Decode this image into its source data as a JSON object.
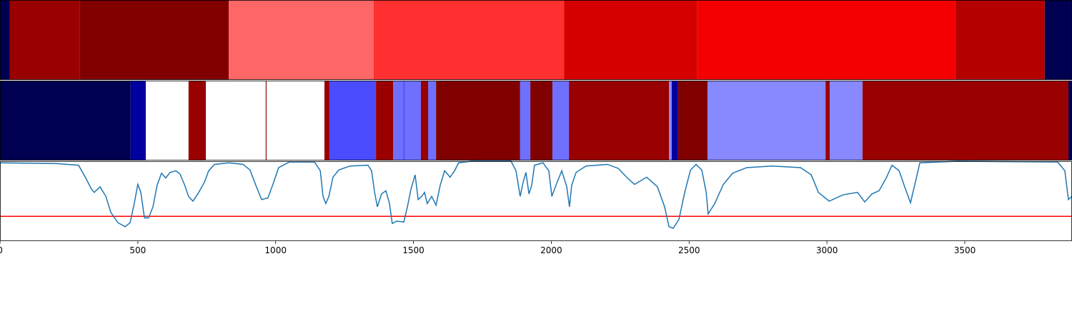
{
  "chart_data": [
    {
      "type": "segments",
      "xlim": [
        0,
        3889
      ],
      "bins": [
        0,
        36,
        290,
        830,
        1356,
        2046,
        2530,
        3466,
        3790,
        3889
      ],
      "colors": [
        "#000050",
        "#990000",
        "#800000",
        "#ff6666",
        "#ff3030",
        "#d50000",
        "#f50000",
        "#b50000",
        "#000050"
      ]
    },
    {
      "type": "segments",
      "xlim": [
        0,
        3889
      ],
      "bins": [
        0,
        474,
        529,
        684,
        747,
        964,
        967,
        1177,
        1195,
        1364,
        1426,
        1460,
        1470,
        1527,
        1553,
        1582,
        1887,
        1924,
        2004,
        2064,
        2427,
        2437,
        2460,
        2567,
        2995,
        3010,
        3129,
        3876,
        3889
      ],
      "colors": [
        "#000050",
        "#0000a0",
        "#ffffff",
        "#990000",
        "#ffffff",
        "#800000",
        "#ffffff",
        "#990000",
        "#4c4cff",
        "#990000",
        "#7070ff",
        "#5c5cff",
        "#7070ff",
        "#990000",
        "#7070ff",
        "#800000",
        "#7070ff",
        "#800000",
        "#7070ff",
        "#990000",
        "#8888ff",
        "#0000a0",
        "#800000",
        "#8888ff",
        "#990000",
        "#8888ff",
        "#990000",
        "#000050"
      ]
    },
    {
      "type": "line",
      "xlim": [
        0,
        3889
      ],
      "ylim": [
        0,
        1
      ],
      "xticks": [
        0,
        500,
        1000,
        1500,
        2000,
        2500,
        3000,
        3500
      ],
      "color": "#1f77b4",
      "hline": {
        "value": 0.31,
        "color": "#ff0000"
      },
      "x": [
        0,
        207,
        285,
        311,
        332,
        342,
        363,
        384,
        402,
        428,
        454,
        472,
        487,
        500,
        511,
        524,
        539,
        555,
        570,
        586,
        601,
        617,
        638,
        653,
        669,
        684,
        700,
        721,
        742,
        757,
        778,
        830,
        882,
        907,
        928,
        949,
        972,
        990,
        1011,
        1050,
        1141,
        1162,
        1172,
        1182,
        1193,
        1208,
        1229,
        1270,
        1335,
        1348,
        1359,
        1369,
        1384,
        1400,
        1413,
        1423,
        1439,
        1465,
        1478,
        1491,
        1506,
        1517,
        1530,
        1540,
        1550,
        1566,
        1582,
        1597,
        1613,
        1633,
        1649,
        1664,
        1711,
        1854,
        1872,
        1887,
        1898,
        1908,
        1919,
        1929,
        1939,
        1970,
        1991,
        2002,
        2017,
        2038,
        2056,
        2066,
        2074,
        2090,
        2126,
        2204,
        2243,
        2276,
        2302,
        2346,
        2385,
        2411,
        2427,
        2442,
        2463,
        2484,
        2505,
        2525,
        2546,
        2562,
        2569,
        2593,
        2624,
        2658,
        2709,
        2800,
        2904,
        2943,
        2969,
        3008,
        3059,
        3111,
        3137,
        3163,
        3189,
        3215,
        3236,
        3262,
        3282,
        3303,
        3319,
        3337,
        3474,
        3837,
        3863,
        3876,
        3889
      ],
      "values": [
        0.98,
        0.97,
        0.95,
        0.79,
        0.65,
        0.61,
        0.68,
        0.56,
        0.36,
        0.23,
        0.18,
        0.23,
        0.47,
        0.71,
        0.61,
        0.29,
        0.29,
        0.43,
        0.7,
        0.85,
        0.79,
        0.86,
        0.88,
        0.84,
        0.71,
        0.56,
        0.5,
        0.61,
        0.74,
        0.88,
        0.96,
        0.98,
        0.96,
        0.89,
        0.7,
        0.52,
        0.54,
        0.71,
        0.92,
        0.99,
        0.99,
        0.88,
        0.56,
        0.47,
        0.56,
        0.8,
        0.89,
        0.94,
        0.95,
        0.88,
        0.61,
        0.43,
        0.59,
        0.63,
        0.47,
        0.22,
        0.25,
        0.24,
        0.43,
        0.65,
        0.83,
        0.52,
        0.56,
        0.61,
        0.47,
        0.56,
        0.45,
        0.7,
        0.88,
        0.8,
        0.88,
        0.98,
        1.0,
        1.0,
        0.88,
        0.56,
        0.74,
        0.86,
        0.59,
        0.7,
        0.95,
        0.98,
        0.88,
        0.56,
        0.7,
        0.88,
        0.68,
        0.43,
        0.7,
        0.86,
        0.94,
        0.96,
        0.91,
        0.79,
        0.71,
        0.8,
        0.68,
        0.43,
        0.18,
        0.16,
        0.27,
        0.61,
        0.89,
        0.96,
        0.89,
        0.61,
        0.34,
        0.47,
        0.71,
        0.85,
        0.92,
        0.94,
        0.92,
        0.83,
        0.61,
        0.5,
        0.58,
        0.61,
        0.49,
        0.59,
        0.63,
        0.79,
        0.95,
        0.88,
        0.68,
        0.48,
        0.71,
        0.98,
        1.0,
        0.99,
        0.88,
        0.52,
        0.56
      ]
    }
  ]
}
